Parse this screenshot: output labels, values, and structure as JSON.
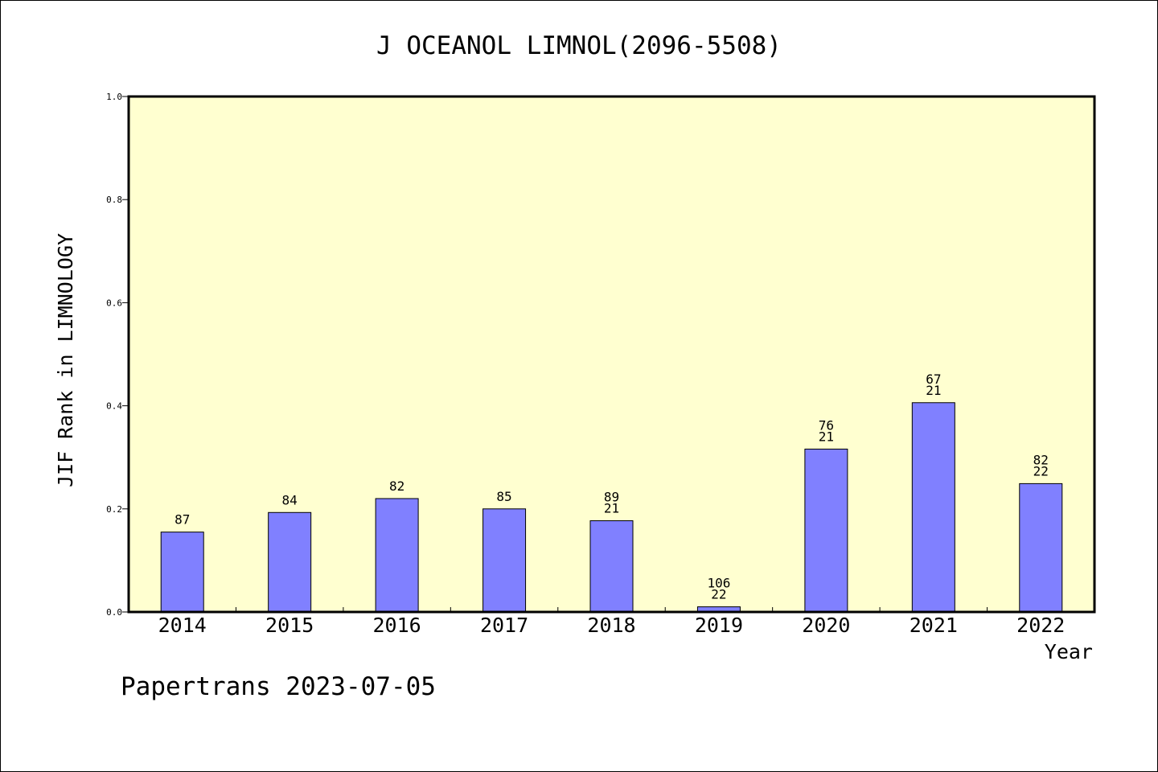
{
  "chart_data": {
    "type": "bar",
    "title": "J OCEANOL LIMNOL(2096-5508)",
    "xlabel": "Year",
    "ylabel": "JIF Rank in LIMNOLOGY",
    "ylim": [
      0,
      1.0
    ],
    "yticks": [
      "0.0",
      "0.2",
      "0.4",
      "0.6",
      "0.8",
      "1.0"
    ],
    "categories": [
      "2014",
      "2015",
      "2016",
      "2017",
      "2018",
      "2019",
      "2020",
      "2021",
      "2022"
    ],
    "values": [
      0.155,
      0.193,
      0.22,
      0.2,
      0.177,
      0.01,
      0.316,
      0.406,
      0.249
    ],
    "bar_labels": [
      [
        "87"
      ],
      [
        "84"
      ],
      [
        "82"
      ],
      [
        "85"
      ],
      [
        "89",
        "21"
      ],
      [
        "106",
        "22"
      ],
      [
        "76",
        "21"
      ],
      [
        "67",
        "21"
      ],
      [
        "82",
        "22"
      ]
    ],
    "grid": false,
    "legend": "none",
    "colors": {
      "plot_background": "#ffffd0",
      "bar_fill": "#8080ff",
      "bar_stroke": "#000000"
    }
  },
  "footer": {
    "text": "Papertrans 2023-07-05"
  }
}
